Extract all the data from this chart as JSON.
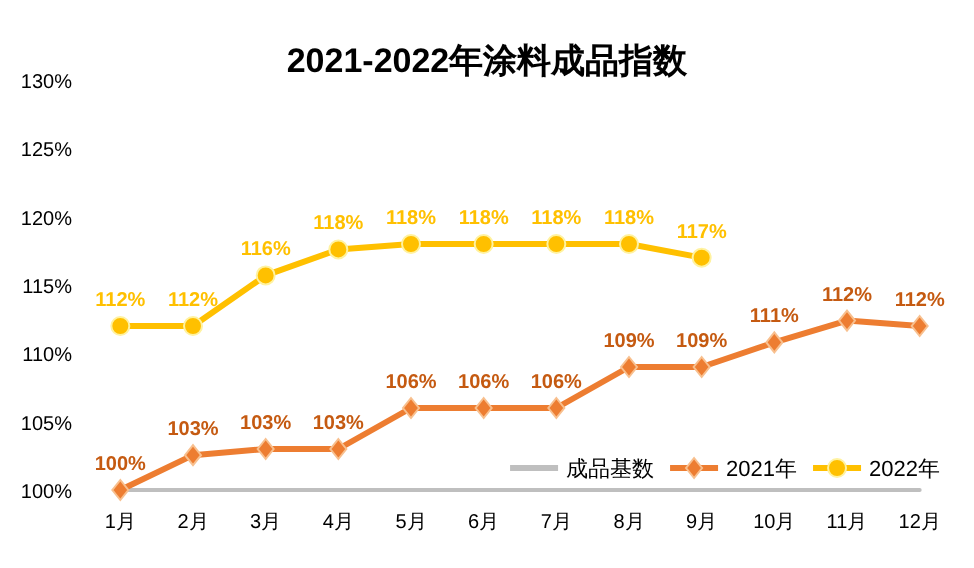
{
  "chart_data": {
    "type": "line",
    "title": "2021-2022年涂料成品指数",
    "categories": [
      "1月",
      "2月",
      "3月",
      "4月",
      "5月",
      "6月",
      "7月",
      "8月",
      "9月",
      "10月",
      "11月",
      "12月"
    ],
    "series": [
      {
        "name": "成品基数",
        "color": "#bfbfbf",
        "marker": "none",
        "values": [
          100,
          100,
          100,
          100,
          100,
          100,
          100,
          100,
          100,
          100,
          100,
          100
        ]
      },
      {
        "name": "2021年",
        "color": "#ed7d31",
        "marker": "diamond",
        "values": [
          100,
          102.55,
          103,
          103,
          106,
          106,
          106,
          109,
          109,
          110.8,
          112.4,
          112
        ],
        "value_labels": [
          "100%",
          "103%",
          "103%",
          "103%",
          "106%",
          "106%",
          "106%",
          "109%",
          "109%",
          "111%",
          "112%",
          "112%"
        ]
      },
      {
        "name": "2022年",
        "color": "#ffc000",
        "marker": "circle",
        "values": [
          112,
          112,
          115.7,
          117.6,
          118,
          118,
          118,
          118,
          117,
          null,
          null,
          null
        ],
        "value_labels": [
          "112%",
          "112%",
          "116%",
          "118%",
          "118%",
          "118%",
          "118%",
          "118%",
          "117%",
          null,
          null,
          null
        ]
      }
    ],
    "ylim": [
      100,
      130
    ],
    "yticks": [
      {
        "value": 100,
        "label": "100%"
      },
      {
        "value": 105,
        "label": "105%"
      },
      {
        "value": 110,
        "label": "110%"
      },
      {
        "value": 115,
        "label": "115%"
      },
      {
        "value": 120,
        "label": "120%"
      },
      {
        "value": 125,
        "label": "125%"
      },
      {
        "value": 130,
        "label": "130%"
      }
    ],
    "grid": false,
    "legend": "bottom right"
  }
}
